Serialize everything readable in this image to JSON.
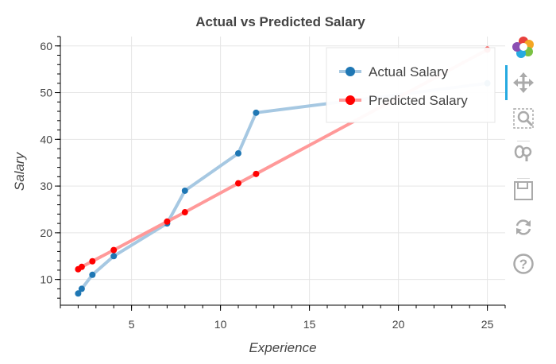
{
  "chart_data": {
    "type": "line",
    "title": "Actual vs Predicted Salary",
    "xlabel": "Experience",
    "ylabel": "Salary",
    "xlim": [
      1.0,
      26.0
    ],
    "ylim": [
      4.5,
      62.0
    ],
    "x_ticks": [
      5,
      10,
      15,
      20,
      25
    ],
    "y_ticks": [
      10,
      20,
      30,
      40,
      50,
      60
    ],
    "grid": true,
    "legend_position": "top-right",
    "series": [
      {
        "name": "Actual Salary",
        "color": "#1f77b4",
        "line_color": "#a6c8e2",
        "x": [
          2,
          2.2,
          2.8,
          4,
          7,
          8,
          11,
          12,
          25
        ],
        "y": [
          7,
          8,
          11,
          15,
          22,
          29,
          37,
          45.7,
          52
        ]
      },
      {
        "name": "Predicted Salary",
        "color": "#ff0000",
        "line_color": "#ff9999",
        "x": [
          2,
          2.2,
          2.8,
          4,
          7,
          8,
          11,
          12,
          25
        ],
        "y": [
          12.2,
          12.7,
          13.9,
          16.3,
          22.4,
          24.4,
          30.6,
          32.6,
          59.2
        ]
      }
    ]
  },
  "toolbar": {
    "tools": [
      "bokeh-logo-icon",
      "pan-icon",
      "box-zoom-icon",
      "wheel-zoom-icon",
      "save-icon",
      "reset-icon",
      "help-icon"
    ],
    "active_tool": "pan-icon"
  }
}
